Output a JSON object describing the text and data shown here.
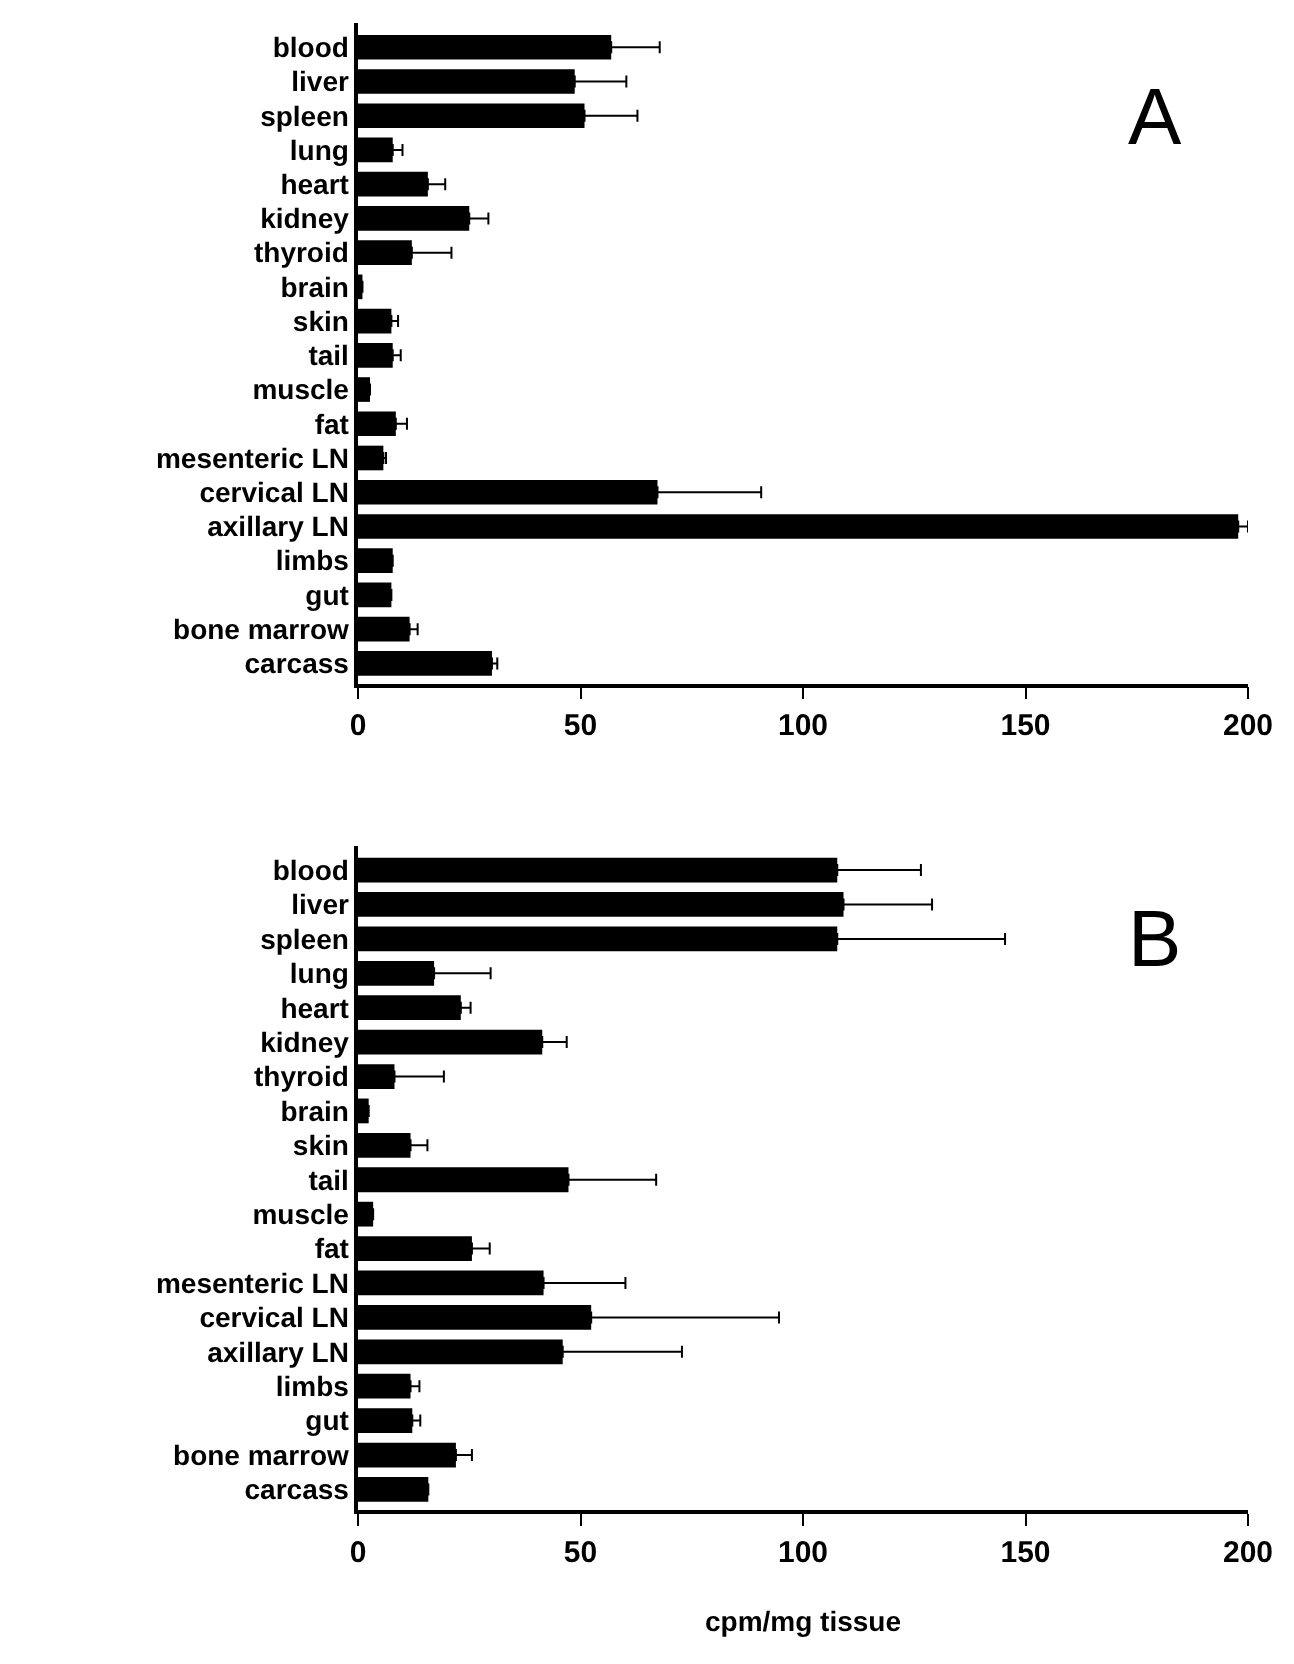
{
  "chart_data": [
    {
      "type": "bar",
      "title": "A",
      "orientation": "horizontal",
      "categories": [
        "blood",
        "liver",
        "spleen",
        "lung",
        "heart",
        "kidney",
        "thyroid",
        "brain",
        "skin",
        "tail",
        "muscle",
        "fat",
        "mesenteric LN",
        "cervical LN",
        "axillary LN",
        "limbs",
        "gut",
        "bone marrow",
        "carcass"
      ],
      "series": [
        {
          "color": "#000000",
          "values": [
            56.9,
            48.7,
            50.9,
            7.8,
            15.7,
            25.0,
            12.1,
            1.0,
            7.5,
            7.8,
            2.7,
            8.5,
            5.7,
            67.3,
            197.8,
            7.8,
            7.5,
            11.6,
            30.1
          ],
          "errors": [
            [
              56.9,
              67.8
            ],
            [
              48.7,
              60.3
            ],
            [
              50.9,
              62.8
            ],
            [
              7.8,
              10.0
            ],
            [
              15.7,
              19.6
            ],
            [
              25.0,
              29.3
            ],
            [
              12.1,
              21.0
            ],
            null,
            [
              7.5,
              9.0
            ],
            [
              7.8,
              9.6
            ],
            null,
            [
              8.5,
              11.0
            ],
            [
              5.7,
              6.3
            ],
            [
              67.3,
              90.6
            ],
            [
              197.8,
              200.0
            ],
            null,
            null,
            [
              11.6,
              13.4
            ],
            [
              30.1,
              31.3
            ]
          ]
        }
      ],
      "xlim": [
        0,
        200
      ],
      "xticks": [
        0,
        50,
        100,
        150,
        200
      ]
    },
    {
      "type": "bar",
      "title": "B",
      "orientation": "horizontal",
      "xlabel": "cpm/mg tissue",
      "categories": [
        "blood",
        "liver",
        "spleen",
        "lung",
        "heart",
        "kidney",
        "thyroid",
        "brain",
        "skin",
        "tail",
        "muscle",
        "fat",
        "mesenteric LN",
        "cervical LN",
        "axillary LN",
        "limbs",
        "gut",
        "bone marrow",
        "carcass"
      ],
      "series": [
        {
          "color": "#000000",
          "values": [
            107.7,
            109.1,
            107.7,
            17.1,
            23.1,
            41.4,
            8.2,
            2.4,
            11.8,
            47.3,
            3.4,
            25.6,
            41.7,
            52.4,
            46.0,
            11.8,
            12.2,
            22.0,
            15.8
          ],
          "errors": [
            [
              107.7,
              126.5
            ],
            [
              109.1,
              129.0
            ],
            [
              107.7,
              145.4
            ],
            [
              17.1,
              29.8
            ],
            [
              23.1,
              25.3
            ],
            [
              41.4,
              46.9
            ],
            [
              8.2,
              19.3
            ],
            null,
            [
              11.8,
              15.6
            ],
            [
              47.3,
              67.0
            ],
            null,
            [
              25.6,
              29.6
            ],
            [
              41.7,
              60.1
            ],
            [
              52.4,
              94.6
            ],
            [
              46.0,
              72.8
            ],
            [
              11.8,
              13.8
            ],
            [
              12.2,
              14.0
            ],
            [
              22.0,
              25.6
            ],
            null
          ]
        }
      ],
      "xlim": [
        0,
        200
      ],
      "xticks": [
        0,
        50,
        100,
        150,
        200
      ]
    }
  ]
}
